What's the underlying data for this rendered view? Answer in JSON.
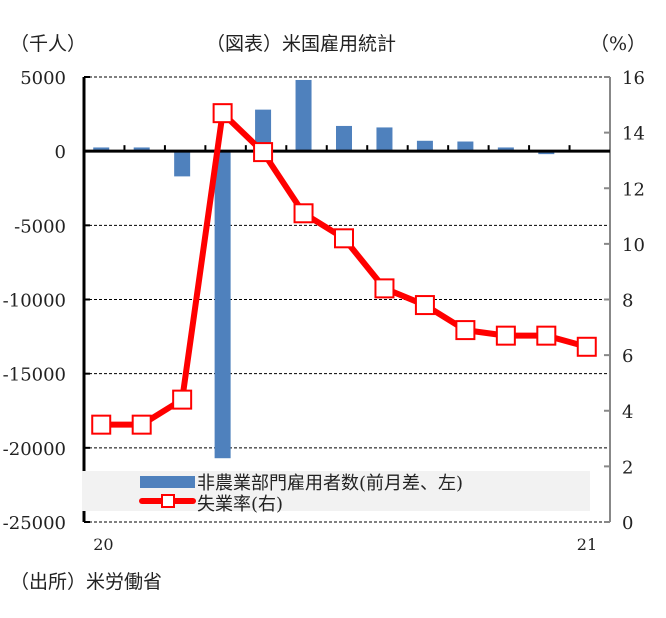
{
  "chart_data": {
    "type": "bar+line",
    "title": "（図表）米国雇用統計",
    "left_unit": "（千人）",
    "right_unit": "（%）",
    "source": "（出所）米労働省",
    "x_tick_labels": [
      "20",
      "21"
    ],
    "categories": [
      "2020-01",
      "2020-02",
      "2020-03",
      "2020-04",
      "2020-05",
      "2020-06",
      "2020-07",
      "2020-08",
      "2020-09",
      "2020-10",
      "2020-11",
      "2020-12",
      "2021-01"
    ],
    "ylim_left": [
      -25000,
      5000
    ],
    "yticks_left": [
      "5000",
      "0",
      "-5000",
      "-10000",
      "-15000",
      "-20000",
      "-25000"
    ],
    "ylim_right": [
      0,
      16
    ],
    "yticks_right": [
      "16",
      "14",
      "12",
      "10",
      "8",
      "6",
      "4",
      "2",
      "0"
    ],
    "grid": "horizontal dashed",
    "legend_placement": "bottom",
    "series": [
      {
        "name": "非農業部門雇用者数(前月差、左)",
        "type": "bar",
        "axis": "left",
        "color": "#4f81bd",
        "values": [
          250,
          250,
          -1700,
          -20700,
          2800,
          4800,
          1700,
          1600,
          700,
          650,
          250,
          -200,
          50
        ]
      },
      {
        "name": "失業率(右)",
        "type": "line",
        "axis": "right",
        "color": "#ff0000",
        "values": [
          3.5,
          3.5,
          4.4,
          14.7,
          13.3,
          11.1,
          10.2,
          8.4,
          7.8,
          6.9,
          6.7,
          6.7,
          6.3
        ]
      }
    ]
  }
}
